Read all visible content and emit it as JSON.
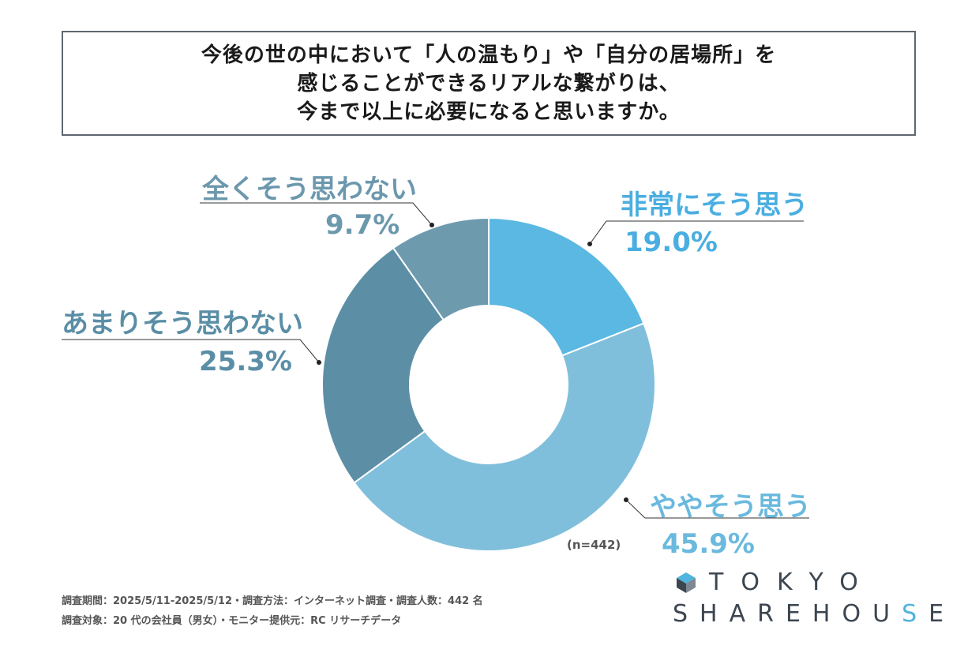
{
  "title_lines": [
    "今後の世の中において「人の温もり」や「自分の居場所」を",
    "感じることができるリアルな繋がりは、",
    "今まで以上に必要になると思いますか。"
  ],
  "chart_data": {
    "type": "pie",
    "subtype": "donut",
    "title": "今後の世の中において「人の温もり」や「自分の居場所」を感じることができるリアルな繋がりは、今まで以上に必要になると思いますか。",
    "categories": [
      "非常にそう思う",
      "ややそう思う",
      "あまりそう思わない",
      "全くそう思わない"
    ],
    "values": [
      19.0,
      45.9,
      25.3,
      9.7
    ],
    "value_labels": [
      "19.0%",
      "45.9%",
      "25.3%",
      "9.7%"
    ],
    "colors": [
      "#5ab8e2",
      "#80bfdb",
      "#5c8fa6",
      "#6e9aae"
    ],
    "start": "top, clockwise",
    "legend": "none"
  },
  "label_colors": [
    "#4aaee0",
    "#6ab9de",
    "#5a8ea6",
    "#6c98ad"
  ],
  "sample_note": "(n=442)",
  "footer": {
    "line1": "調査期間：2025/5/11-2025/5/12・調査方法：インターネット調査・調査人数：442 名",
    "line2": "調査対象：20 代の会社員（男女）・モニター提供元：RC リサーチデータ"
  },
  "logo": {
    "icon": "house-cube-icon",
    "word1": "TOKYO",
    "word2_part1": "SHAREHOU",
    "word2_accent": "S",
    "word2_part2": "E"
  }
}
